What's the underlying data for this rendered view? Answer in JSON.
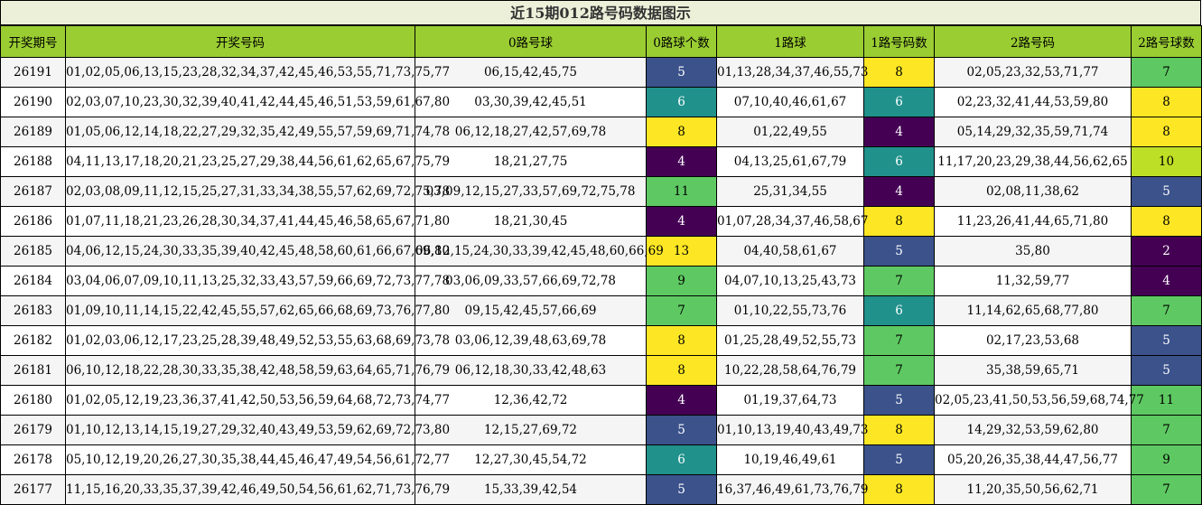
{
  "chart_data": {
    "type": "table",
    "title": "近15期012路号码数据图示",
    "columns": [
      "开奖期号",
      "开奖号码",
      "0路号球",
      "0路球个数",
      "1路球",
      "1路号码数",
      "2路号码",
      "2路号球数"
    ],
    "rows": [
      [
        "26191",
        "01,02,05,06,13,15,23,28,32,34,37,42,45,46,53,55,71,73,75,77",
        "06,15,42,45,75",
        5,
        "01,13,28,34,37,46,55,73",
        8,
        "02,05,23,32,53,71,77",
        7
      ],
      [
        "26190",
        "02,03,07,10,23,30,32,39,40,41,42,44,45,46,51,53,59,61,67,80",
        "03,30,39,42,45,51",
        6,
        "07,10,40,46,61,67",
        6,
        "02,23,32,41,44,53,59,80",
        8
      ],
      [
        "26189",
        "01,05,06,12,14,18,22,27,29,32,35,42,49,55,57,59,69,71,74,78",
        "06,12,18,27,42,57,69,78",
        8,
        "01,22,49,55",
        4,
        "05,14,29,32,35,59,71,74",
        8
      ],
      [
        "26188",
        "04,11,13,17,18,20,21,23,25,27,29,38,44,56,61,62,65,67,75,79",
        "18,21,27,75",
        4,
        "04,13,25,61,67,79",
        6,
        "11,17,20,23,29,38,44,56,62,65",
        10
      ],
      [
        "26187",
        "02,03,08,09,11,12,15,25,27,31,33,34,38,55,57,62,69,72,75,78",
        "03,09,12,15,27,33,57,69,72,75,78",
        11,
        "25,31,34,55",
        4,
        "02,08,11,38,62",
        5
      ],
      [
        "26186",
        "01,07,11,18,21,23,26,28,30,34,37,41,44,45,46,58,65,67,71,80",
        "18,21,30,45",
        4,
        "01,07,28,34,37,46,58,67",
        8,
        "11,23,26,41,44,65,71,80",
        8
      ],
      [
        "26185",
        "04,06,12,15,24,30,33,35,39,40,42,45,48,58,60,61,66,67,69,80",
        "06,12,15,24,30,33,39,42,45,48,60,66,69",
        13,
        "04,40,58,61,67",
        5,
        "35,80",
        2
      ],
      [
        "26184",
        "03,04,06,07,09,10,11,13,25,32,33,43,57,59,66,69,72,73,77,78",
        "03,06,09,33,57,66,69,72,78",
        9,
        "04,07,10,13,25,43,73",
        7,
        "11,32,59,77",
        4
      ],
      [
        "26183",
        "01,09,10,11,14,15,22,42,45,55,57,62,65,66,68,69,73,76,77,80",
        "09,15,42,45,57,66,69",
        7,
        "01,10,22,55,73,76",
        6,
        "11,14,62,65,68,77,80",
        7
      ],
      [
        "26182",
        "01,02,03,06,12,17,23,25,28,39,48,49,52,53,55,63,68,69,73,78",
        "03,06,12,39,48,63,69,78",
        8,
        "01,25,28,49,52,55,73",
        7,
        "02,17,23,53,68",
        5
      ],
      [
        "26181",
        "06,10,12,18,22,28,30,33,35,38,42,48,58,59,63,64,65,71,76,79",
        "06,12,18,30,33,42,48,63",
        8,
        "10,22,28,58,64,76,79",
        7,
        "35,38,59,65,71",
        5
      ],
      [
        "26180",
        "01,02,05,12,19,23,36,37,41,42,50,53,56,59,64,68,72,73,74,77",
        "12,36,42,72",
        4,
        "01,19,37,64,73",
        5,
        "02,05,23,41,50,53,56,59,68,74,77",
        11
      ],
      [
        "26179",
        "01,10,12,13,14,15,19,27,29,32,40,43,49,53,59,62,69,72,73,80",
        "12,15,27,69,72",
        5,
        "01,10,13,19,40,43,49,73",
        8,
        "14,29,32,53,59,62,80",
        7
      ],
      [
        "26178",
        "05,10,12,19,20,26,27,30,35,38,44,45,46,47,49,54,56,61,72,77",
        "12,27,30,45,54,72",
        6,
        "10,19,46,49,61",
        5,
        "05,20,26,35,38,44,47,56,77",
        9
      ],
      [
        "26177",
        "11,15,16,20,33,35,37,39,42,46,49,50,54,56,61,62,71,73,76,79",
        "15,33,39,42,54",
        5,
        "16,37,46,49,61,73,76,79",
        8,
        "11,20,35,50,56,62,71",
        7
      ]
    ],
    "count_colors": {
      "2": "#440154",
      "4": "#440154",
      "5": "#3b528b",
      "6": "#21918c",
      "7": "#5ec962",
      "8": "#fde725",
      "9": "#5ec962",
      "10": "#bddf26",
      "11": "#5ec962",
      "13": "#fde725"
    }
  }
}
